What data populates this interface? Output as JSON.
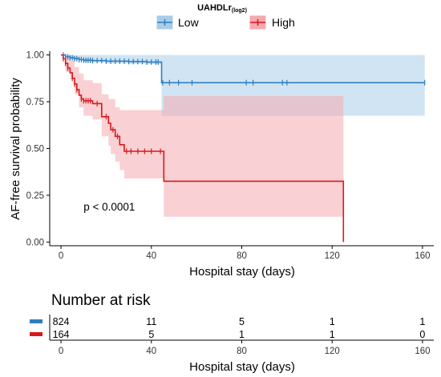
{
  "chart_data": {
    "type": "line",
    "subtype": "kaplan-meier",
    "legend": {
      "title_main": "UAHDLr",
      "title_sub": "(log2)",
      "placement": "top",
      "entries": [
        "Low",
        "High"
      ]
    },
    "xlabel": "Hospital stay (days)",
    "ylabel": "AF-free survival probability",
    "xlim": [
      -5,
      165
    ],
    "ylim": [
      -0.02,
      1.02
    ],
    "x_ticks": [
      0,
      40,
      80,
      120,
      160
    ],
    "y_ticks": [
      0.0,
      0.25,
      0.5,
      0.75,
      1.0
    ],
    "y_tick_labels": [
      "0.00",
      "0.25",
      "0.50",
      "0.75",
      "1.00"
    ],
    "grid": false,
    "annotation": "p < 0.0001",
    "annotation_at": [
      10,
      0.19
    ],
    "series": [
      {
        "name": "Low",
        "color": "#2E7EBF",
        "ci_color": "#A9CDE9",
        "steps": [
          [
            0,
            1.0
          ],
          [
            2,
            0.99
          ],
          [
            4,
            0.985
          ],
          [
            6,
            0.98
          ],
          [
            8,
            0.975
          ],
          [
            10,
            0.972
          ],
          [
            14,
            0.97
          ],
          [
            20,
            0.967
          ],
          [
            30,
            0.965
          ],
          [
            38,
            0.962
          ],
          [
            44.5,
            0.852
          ],
          [
            161,
            0.852
          ]
        ],
        "lower": [
          [
            0,
            1.0
          ],
          [
            4,
            0.975
          ],
          [
            10,
            0.96
          ],
          [
            20,
            0.955
          ],
          [
            30,
            0.952
          ],
          [
            44.5,
            0.675
          ],
          [
            161,
            0.675
          ]
        ],
        "upper": [
          [
            0,
            1.0
          ],
          [
            161,
            1.0
          ]
        ],
        "censor_x": [
          1,
          2,
          3,
          4,
          5,
          6,
          7,
          8,
          9,
          10,
          11,
          12,
          13,
          14,
          16,
          18,
          20,
          22,
          24,
          26,
          28,
          30,
          32,
          34,
          36,
          38,
          40,
          42,
          43,
          45,
          48,
          52,
          58,
          82,
          85,
          98,
          100,
          161
        ]
      },
      {
        "name": "High",
        "color": "#D7191C",
        "ci_color": "#F4A9AE",
        "steps": [
          [
            0,
            1.0
          ],
          [
            1,
            0.98
          ],
          [
            2,
            0.955
          ],
          [
            3,
            0.93
          ],
          [
            4,
            0.905
          ],
          [
            5,
            0.875
          ],
          [
            6,
            0.845
          ],
          [
            7,
            0.815
          ],
          [
            8,
            0.785
          ],
          [
            9,
            0.765
          ],
          [
            10,
            0.755
          ],
          [
            14,
            0.74
          ],
          [
            18,
            0.67
          ],
          [
            21,
            0.635
          ],
          [
            22,
            0.6
          ],
          [
            24,
            0.565
          ],
          [
            26,
            0.52
          ],
          [
            28,
            0.485
          ],
          [
            45.5,
            0.325
          ],
          [
            125,
            0.325
          ],
          [
            125,
            0.0
          ]
        ],
        "lower": [
          [
            0,
            1.0
          ],
          [
            2,
            0.91
          ],
          [
            4,
            0.87
          ],
          [
            6,
            0.79
          ],
          [
            8,
            0.72
          ],
          [
            10,
            0.675
          ],
          [
            14,
            0.655
          ],
          [
            18,
            0.565
          ],
          [
            21,
            0.515
          ],
          [
            22,
            0.47
          ],
          [
            24,
            0.43
          ],
          [
            26,
            0.385
          ],
          [
            28,
            0.34
          ],
          [
            45.5,
            0.135
          ],
          [
            125,
            0.135
          ]
        ],
        "upper": [
          [
            0,
            1.0
          ],
          [
            4,
            0.97
          ],
          [
            6,
            0.935
          ],
          [
            8,
            0.9
          ],
          [
            10,
            0.865
          ],
          [
            14,
            0.85
          ],
          [
            18,
            0.79
          ],
          [
            21,
            0.765
          ],
          [
            24,
            0.72
          ],
          [
            26,
            0.705
          ],
          [
            28,
            0.705
          ],
          [
            45.5,
            0.78
          ],
          [
            125,
            0.78
          ]
        ],
        "censor_x": [
          1,
          2,
          3,
          5,
          6,
          7,
          9,
          10,
          11,
          12,
          13,
          16,
          20,
          23,
          25,
          29,
          31,
          34,
          37,
          40,
          44
        ]
      }
    ],
    "risk_table": {
      "title": "Number at risk",
      "xlabel": "Hospital stay (days)",
      "x_ticks": [
        0,
        40,
        80,
        120,
        160
      ],
      "rows": [
        {
          "name": "Low",
          "color": "#2E7EBF",
          "counts": [
            "824",
            "11",
            "5",
            "1",
            "1"
          ]
        },
        {
          "name": "High",
          "color": "#D7191C",
          "counts": [
            "164",
            "5",
            "1",
            "1",
            "0"
          ]
        }
      ]
    }
  }
}
